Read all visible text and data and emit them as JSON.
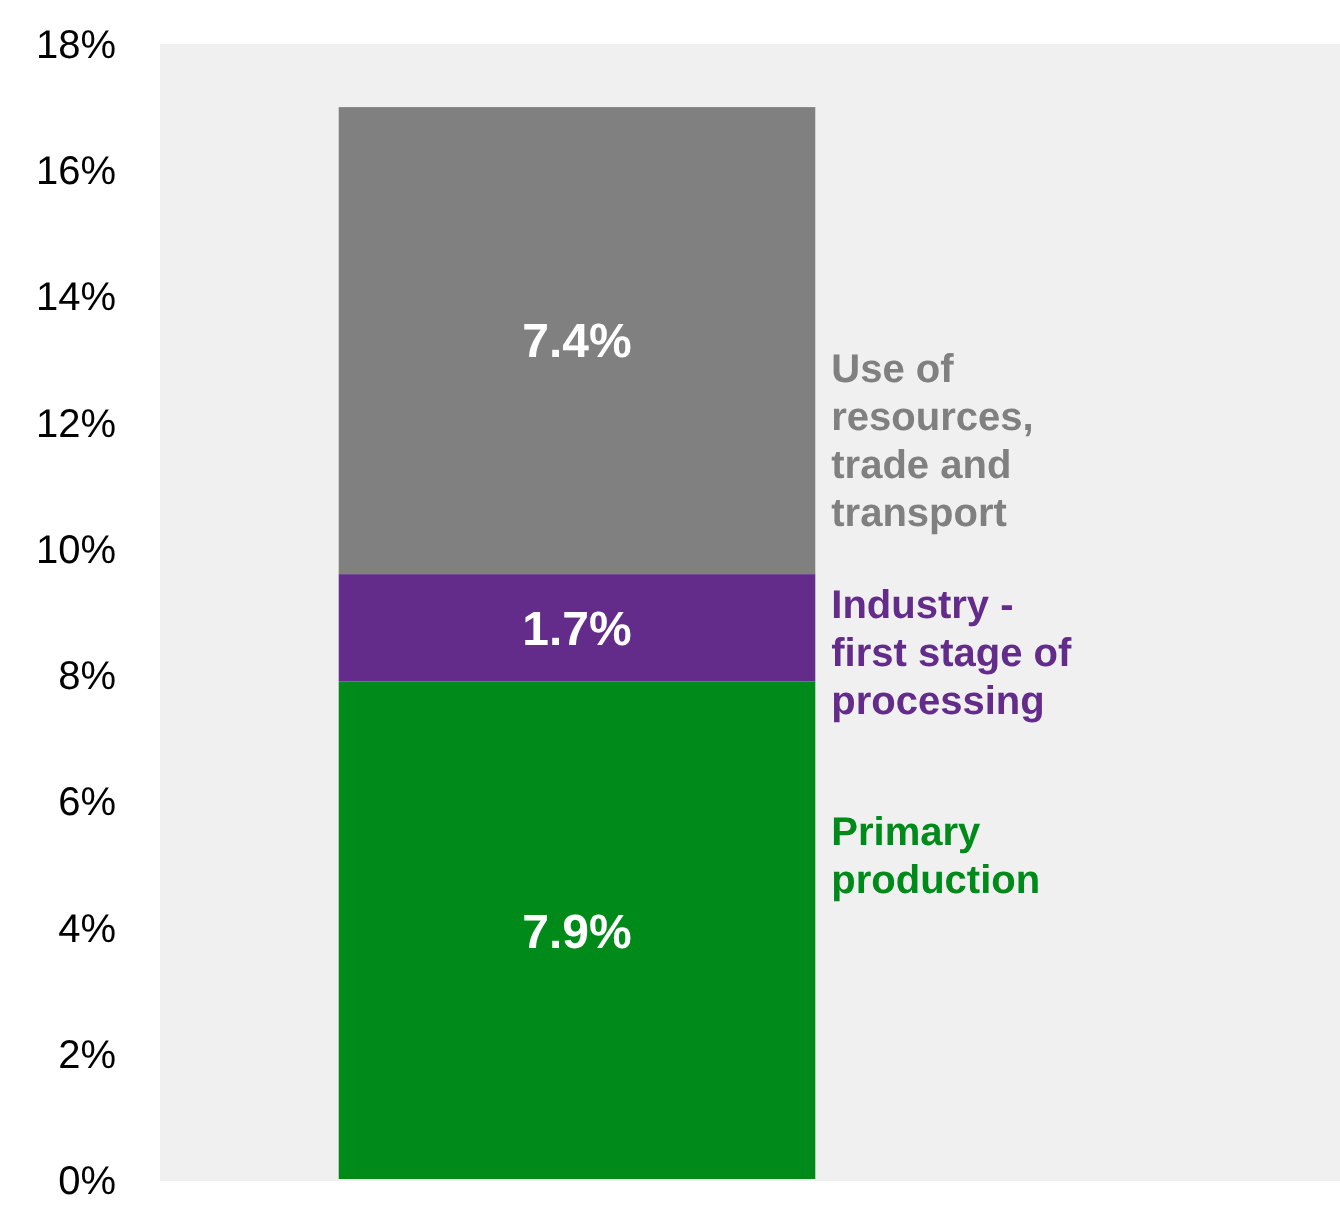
{
  "chart_data": {
    "type": "bar",
    "stacked": true,
    "categories": [
      null
    ],
    "series": [
      {
        "name": "Primary production",
        "color": "#008a1a",
        "values": [
          7.9
        ],
        "value_labels": [
          "7.9%"
        ]
      },
      {
        "name": "Industry - first stage of processing",
        "color": "#632b8a",
        "values": [
          1.7
        ],
        "value_labels": [
          "1.7%"
        ]
      },
      {
        "name": "Use of resources, trade and transport",
        "color": "#808080",
        "values": [
          7.4
        ],
        "value_labels": [
          "7.4%"
        ]
      }
    ],
    "ylim": [
      0,
      18
    ],
    "yticks": [
      {
        "value": 0,
        "label": "0%"
      },
      {
        "value": 2,
        "label": "2%"
      },
      {
        "value": 4,
        "label": "4%"
      },
      {
        "value": 6,
        "label": "6%"
      },
      {
        "value": 8,
        "label": "8%"
      },
      {
        "value": 10,
        "label": "10%"
      },
      {
        "value": 12,
        "label": "12%"
      },
      {
        "value": 14,
        "label": "14%"
      },
      {
        "value": 16,
        "label": "16%"
      },
      {
        "value": 18,
        "label": "18%"
      }
    ]
  }
}
